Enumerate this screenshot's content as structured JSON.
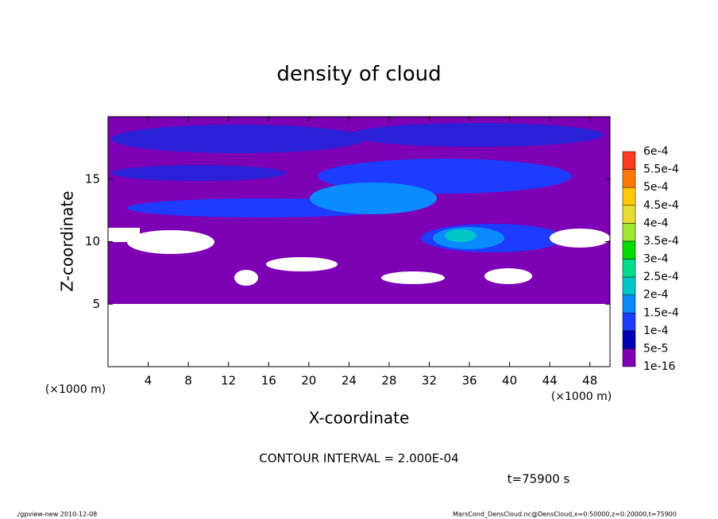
{
  "chart_data": {
    "type": "contour",
    "title": "density of cloud",
    "xlabel": "X-coordinate",
    "ylabel": "Z-coordinate",
    "x_unit_label": "(×1000 m)",
    "xlim": [
      0,
      50
    ],
    "xticks": [
      4,
      8,
      12,
      16,
      20,
      24,
      28,
      32,
      36,
      40,
      44,
      48
    ],
    "ylim": [
      0,
      20
    ],
    "yticks": [
      5,
      10,
      15
    ],
    "levels": [
      {
        "value": 1e-16,
        "label": "1e-16"
      },
      {
        "value": 5e-05,
        "label": "5e-5"
      },
      {
        "value": 0.0001,
        "label": "1e-4"
      },
      {
        "value": 0.00015,
        "label": "1.5e-4"
      },
      {
        "value": 0.0002,
        "label": "2e-4"
      },
      {
        "value": 0.00025,
        "label": "2.5e-4"
      },
      {
        "value": 0.0003,
        "label": "3e-4"
      },
      {
        "value": 0.00035,
        "label": "3.5e-4"
      },
      {
        "value": 0.0004,
        "label": "4e-4"
      },
      {
        "value": 0.00045,
        "label": "4.5e-4"
      },
      {
        "value": 0.0005,
        "label": "5e-4"
      },
      {
        "value": 0.00055,
        "label": "5.5e-4"
      },
      {
        "value": 0.0006,
        "label": "6e-4"
      }
    ],
    "colors": [
      "#7d00b4",
      "#0000b4",
      "#1e3cff",
      "#0a8cff",
      "#00c8c8",
      "#00dc8c",
      "#00dc00",
      "#a0e632",
      "#e6dc32",
      "#ffc800",
      "#ff7800",
      "#ff3c1e",
      "#ff9090"
    ],
    "contour_interval": "CONTOUR INTERVAL = 2.000E-04",
    "time_label": "t=75900 s",
    "footer_left": "./gpview-new  2010-12-08",
    "footer_right": "MarsCond_DensCloud.nc@DensCloud,x=0:50000,z=0:20000,t=75900"
  }
}
